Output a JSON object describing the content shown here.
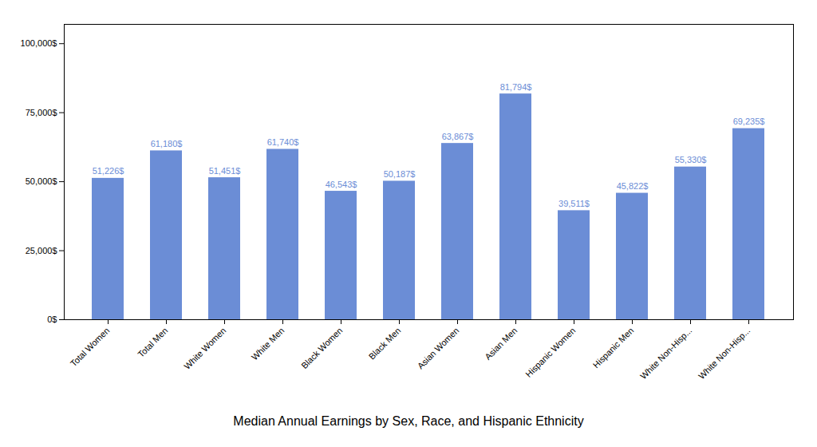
{
  "chart_data": {
    "type": "bar",
    "title": "Median Annual Earnings by Sex, Race, and Hispanic Ethnicity",
    "categories": [
      "Total Women",
      "Total Men",
      "White Women",
      "White Men",
      "Black Women",
      "Black Men",
      "Asian Women",
      "Asian Men",
      "Hispanic Women",
      "Hispanic Men",
      "White Non-Hisp...",
      "White Non-Hisp..."
    ],
    "values": [
      51226,
      61180,
      51451,
      61740,
      46543,
      50187,
      63867,
      81794,
      39511,
      45822,
      55330,
      69235
    ],
    "value_labels": [
      "51,226$",
      "61,180$",
      "51,451$",
      "61,740$",
      "46,543$",
      "50,187$",
      "63,867$",
      "81,794$",
      "39,511$",
      "45,822$",
      "55,330$",
      "69,235$"
    ],
    "data_labels": true,
    "color": "#6B8DD6",
    "ylim": [
      0,
      107000
    ],
    "yticks": [
      {
        "value": 0,
        "label": "0$"
      },
      {
        "value": 25000,
        "label": "25,000$"
      },
      {
        "value": 50000,
        "label": "50,000$"
      },
      {
        "value": 75000,
        "label": "75,000$"
      },
      {
        "value": 100000,
        "label": "100,000$"
      }
    ],
    "grid": false
  }
}
